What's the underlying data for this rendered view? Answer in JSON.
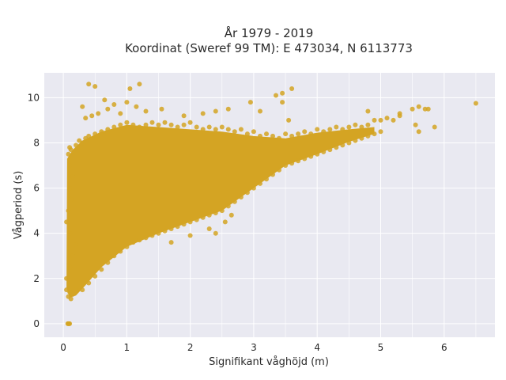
{
  "chart_data": {
    "type": "scatter",
    "title_line1": "År 1979 - 2019",
    "title_line2": "Koordinat (Sweref 99 TM): E 473034, N 6113773",
    "xlabel": "Signifikant våghöjd (m)",
    "ylabel": "Vågperiod (s)",
    "xlim": [
      -0.3,
      6.8
    ],
    "ylim": [
      -0.6,
      11.1
    ],
    "xticks": [
      "0",
      "1",
      "2",
      "3",
      "4",
      "5",
      "6"
    ],
    "yticks": [
      "0",
      "2",
      "4",
      "6",
      "8",
      "10"
    ],
    "grid": true,
    "colors": {
      "point": "#D4A423",
      "plot_bg": "#E9E9F1",
      "grid": "#ffffff"
    },
    "points": [
      [
        0.07,
        0.0
      ],
      [
        0.09,
        0.0
      ],
      [
        0.1,
        0.0
      ],
      [
        0.08,
        0.0
      ],
      [
        0.05,
        1.5
      ],
      [
        0.08,
        1.2
      ],
      [
        0.1,
        1.4
      ],
      [
        0.12,
        1.1
      ],
      [
        0.15,
        1.3
      ],
      [
        0.2,
        1.5
      ],
      [
        0.05,
        2.0
      ],
      [
        0.1,
        2.5
      ],
      [
        0.15,
        3.0
      ],
      [
        0.2,
        3.5
      ],
      [
        0.1,
        4.0
      ],
      [
        0.05,
        4.5
      ],
      [
        0.08,
        5.0
      ],
      [
        0.12,
        5.5
      ],
      [
        0.1,
        6.0
      ],
      [
        0.15,
        6.5
      ],
      [
        0.1,
        7.0
      ],
      [
        0.08,
        7.5
      ],
      [
        0.1,
        7.8
      ],
      [
        0.12,
        7.7
      ],
      [
        0.2,
        7.9
      ],
      [
        0.25,
        8.1
      ],
      [
        0.3,
        8.0
      ],
      [
        0.35,
        8.2
      ],
      [
        0.4,
        8.3
      ],
      [
        0.5,
        8.4
      ],
      [
        0.6,
        8.5
      ],
      [
        0.7,
        8.6
      ],
      [
        0.8,
        8.7
      ],
      [
        0.9,
        8.8
      ],
      [
        1.0,
        8.9
      ],
      [
        1.1,
        8.8
      ],
      [
        1.2,
        8.7
      ],
      [
        1.3,
        8.8
      ],
      [
        1.4,
        8.9
      ],
      [
        1.5,
        8.8
      ],
      [
        1.6,
        8.9
      ],
      [
        1.7,
        8.8
      ],
      [
        1.8,
        8.7
      ],
      [
        1.9,
        8.8
      ],
      [
        2.0,
        8.9
      ],
      [
        2.1,
        8.7
      ],
      [
        2.2,
        8.6
      ],
      [
        2.3,
        8.7
      ],
      [
        2.4,
        8.6
      ],
      [
        2.5,
        8.7
      ],
      [
        2.6,
        8.6
      ],
      [
        2.7,
        8.5
      ],
      [
        2.8,
        8.6
      ],
      [
        2.9,
        8.4
      ],
      [
        3.0,
        8.5
      ],
      [
        3.1,
        8.3
      ],
      [
        3.2,
        8.4
      ],
      [
        3.3,
        8.3
      ],
      [
        3.4,
        8.2
      ],
      [
        3.5,
        8.4
      ],
      [
        3.6,
        8.3
      ],
      [
        3.7,
        8.4
      ],
      [
        3.8,
        8.5
      ],
      [
        3.9,
        8.4
      ],
      [
        4.0,
        8.6
      ],
      [
        4.1,
        8.5
      ],
      [
        4.2,
        8.6
      ],
      [
        4.3,
        8.7
      ],
      [
        4.4,
        8.6
      ],
      [
        4.5,
        8.7
      ],
      [
        4.6,
        8.8
      ],
      [
        4.7,
        8.7
      ],
      [
        4.8,
        8.8
      ],
      [
        4.9,
        9.0
      ],
      [
        5.0,
        9.0
      ],
      [
        5.1,
        9.1
      ],
      [
        5.2,
        9.0
      ],
      [
        5.3,
        9.2
      ],
      [
        5.5,
        9.5
      ],
      [
        5.55,
        8.8
      ],
      [
        5.6,
        8.5
      ],
      [
        5.6,
        9.6
      ],
      [
        5.7,
        9.5
      ],
      [
        5.75,
        9.5
      ],
      [
        5.85,
        8.7
      ],
      [
        6.5,
        9.75
      ],
      [
        0.4,
        10.6
      ],
      [
        0.5,
        10.5
      ],
      [
        1.2,
        10.6
      ],
      [
        1.05,
        10.4
      ],
      [
        0.65,
        9.9
      ],
      [
        0.8,
        9.7
      ],
      [
        1.0,
        9.8
      ],
      [
        0.7,
        9.5
      ],
      [
        0.55,
        9.3
      ],
      [
        0.35,
        9.1
      ],
      [
        0.45,
        9.2
      ],
      [
        0.3,
        9.6
      ],
      [
        0.9,
        9.3
      ],
      [
        1.15,
        9.6
      ],
      [
        1.3,
        9.4
      ],
      [
        1.55,
        9.5
      ],
      [
        1.9,
        9.2
      ],
      [
        2.2,
        9.3
      ],
      [
        2.4,
        9.4
      ],
      [
        2.6,
        9.5
      ],
      [
        3.1,
        9.4
      ],
      [
        3.35,
        10.1
      ],
      [
        3.45,
        10.2
      ],
      [
        3.6,
        10.4
      ],
      [
        3.45,
        9.8
      ],
      [
        2.95,
        9.8
      ],
      [
        3.55,
        9.0
      ],
      [
        4.8,
        9.4
      ],
      [
        5.3,
        9.3
      ],
      [
        0.3,
        1.5
      ],
      [
        0.4,
        1.8
      ],
      [
        0.5,
        2.1
      ],
      [
        0.6,
        2.4
      ],
      [
        0.7,
        2.7
      ],
      [
        0.8,
        3.0
      ],
      [
        0.9,
        3.2
      ],
      [
        1.0,
        3.4
      ],
      [
        1.1,
        3.6
      ],
      [
        1.2,
        3.7
      ],
      [
        1.3,
        3.8
      ],
      [
        1.4,
        3.9
      ],
      [
        1.5,
        4.0
      ],
      [
        1.6,
        4.1
      ],
      [
        1.7,
        4.2
      ],
      [
        1.8,
        4.3
      ],
      [
        1.9,
        4.4
      ],
      [
        2.0,
        4.5
      ],
      [
        2.1,
        4.6
      ],
      [
        2.2,
        4.7
      ],
      [
        2.3,
        4.8
      ],
      [
        2.4,
        4.9
      ],
      [
        2.5,
        5.0
      ],
      [
        2.6,
        5.2
      ],
      [
        2.7,
        5.4
      ],
      [
        2.8,
        5.6
      ],
      [
        2.9,
        5.8
      ],
      [
        3.0,
        6.0
      ],
      [
        3.1,
        6.2
      ],
      [
        3.2,
        6.4
      ],
      [
        3.3,
        6.6
      ],
      [
        3.4,
        6.8
      ],
      [
        3.5,
        7.0
      ],
      [
        3.6,
        7.1
      ],
      [
        3.7,
        7.2
      ],
      [
        3.8,
        7.3
      ],
      [
        3.9,
        7.4
      ],
      [
        4.0,
        7.5
      ],
      [
        4.1,
        7.6
      ],
      [
        4.2,
        7.7
      ],
      [
        4.3,
        7.8
      ],
      [
        4.4,
        7.9
      ],
      [
        4.5,
        8.0
      ],
      [
        4.6,
        8.1
      ],
      [
        4.7,
        8.2
      ],
      [
        4.8,
        8.3
      ],
      [
        4.9,
        8.4
      ],
      [
        5.0,
        8.5
      ],
      [
        2.3,
        4.2
      ],
      [
        2.4,
        4.0
      ],
      [
        2.0,
        3.9
      ],
      [
        1.7,
        3.6
      ],
      [
        2.55,
        4.5
      ],
      [
        2.65,
        4.8
      ]
    ]
  }
}
